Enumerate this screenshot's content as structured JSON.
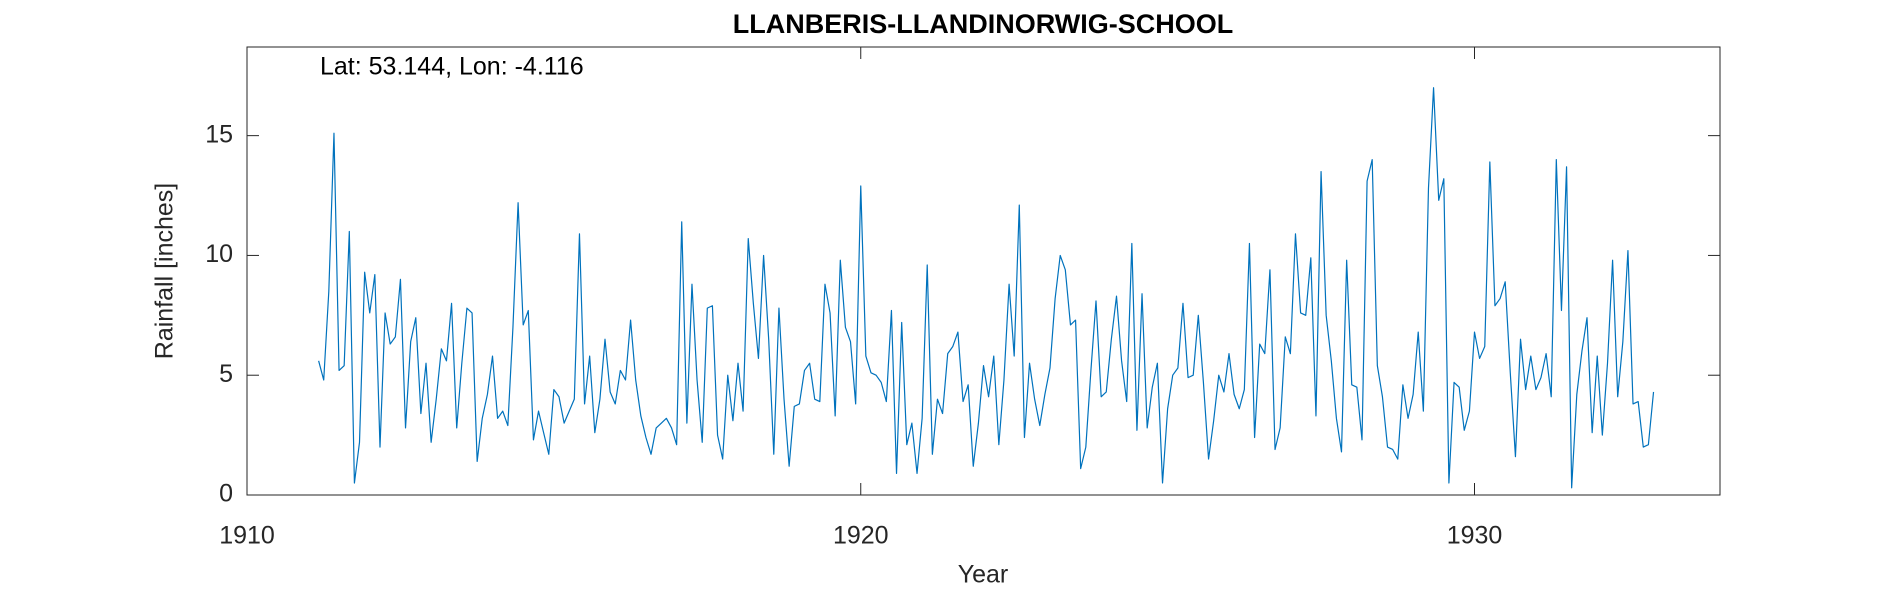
{
  "chart_data": {
    "type": "line",
    "title": "LLANBERIS-LLANDINORWIG-SCHOOL",
    "annotation": "Lat: 53.144, Lon: -4.116",
    "xlabel": "Year",
    "ylabel": "Rainfall [inches]",
    "color": "#0072bd",
    "xlim": [
      1910,
      1934
    ],
    "xticks": [
      1910,
      1920,
      1930
    ],
    "ylim": [
      0,
      18.7
    ],
    "yticks": [
      0,
      5,
      10,
      15
    ],
    "x": [
      1911.167,
      1911.25,
      1911.333,
      1911.417,
      1911.5,
      1911.583,
      1911.667,
      1911.75,
      1911.833,
      1911.917,
      1912,
      1912.083,
      1912.167,
      1912.25,
      1912.333,
      1912.417,
      1912.5,
      1912.583,
      1912.667,
      1912.75,
      1912.833,
      1912.917,
      1913,
      1913.083,
      1913.167,
      1913.25,
      1913.333,
      1913.417,
      1913.5,
      1913.583,
      1913.667,
      1913.75,
      1913.833,
      1913.917,
      1914,
      1914.083,
      1914.167,
      1914.25,
      1914.333,
      1914.417,
      1914.5,
      1914.583,
      1914.667,
      1914.75,
      1914.833,
      1914.917,
      1915,
      1915.083,
      1915.167,
      1915.25,
      1915.333,
      1915.417,
      1915.5,
      1915.583,
      1915.667,
      1915.75,
      1915.833,
      1915.917,
      1916,
      1916.083,
      1916.167,
      1916.25,
      1916.333,
      1916.417,
      1916.5,
      1916.583,
      1916.667,
      1916.75,
      1916.833,
      1916.917,
      1917,
      1917.083,
      1917.167,
      1917.25,
      1917.333,
      1917.417,
      1917.5,
      1917.583,
      1917.667,
      1917.75,
      1917.833,
      1917.917,
      1918,
      1918.083,
      1918.167,
      1918.25,
      1918.333,
      1918.417,
      1918.5,
      1918.583,
      1918.667,
      1918.75,
      1918.833,
      1918.917,
      1919,
      1919.083,
      1919.167,
      1919.25,
      1919.333,
      1919.417,
      1919.5,
      1919.583,
      1919.667,
      1919.75,
      1919.833,
      1919.917,
      1920,
      1920.083,
      1920.167,
      1920.25,
      1920.333,
      1920.417,
      1920.5,
      1920.583,
      1920.667,
      1920.75,
      1920.833,
      1920.917,
      1921,
      1921.083,
      1921.167,
      1921.25,
      1921.333,
      1921.417,
      1921.5,
      1921.583,
      1921.667,
      1921.75,
      1921.833,
      1921.917,
      1922,
      1922.083,
      1922.167,
      1922.25,
      1922.333,
      1922.417,
      1922.5,
      1922.583,
      1922.667,
      1922.75,
      1922.833,
      1922.917,
      1923,
      1923.083,
      1923.167,
      1923.25,
      1923.333,
      1923.417,
      1923.5,
      1923.583,
      1923.667,
      1923.75,
      1923.833,
      1923.917,
      1924,
      1924.083,
      1924.167,
      1924.25,
      1924.333,
      1924.417,
      1924.5,
      1924.583,
      1924.667,
      1924.75,
      1924.833,
      1924.917,
      1925,
      1925.083,
      1925.167,
      1925.25,
      1925.333,
      1925.417,
      1925.5,
      1925.583,
      1925.667,
      1925.75,
      1925.833,
      1925.917,
      1926,
      1926.083,
      1926.167,
      1926.25,
      1926.333,
      1926.417,
      1926.5,
      1926.583,
      1926.667,
      1926.75,
      1926.833,
      1926.917,
      1927,
      1927.083,
      1927.167,
      1927.25,
      1927.333,
      1927.417,
      1927.5,
      1927.583,
      1927.667,
      1927.75,
      1927.833,
      1927.917,
      1928,
      1928.083,
      1928.167,
      1928.25,
      1928.333,
      1928.417,
      1928.5,
      1928.583,
      1928.667,
      1928.75,
      1928.833,
      1928.917,
      1929,
      1929.083,
      1929.167,
      1929.25,
      1929.333,
      1929.417,
      1929.5,
      1929.583,
      1929.667,
      1929.75,
      1929.833,
      1929.917,
      1930,
      1930.083,
      1930.167,
      1930.25,
      1930.333,
      1930.417,
      1930.5,
      1930.583,
      1930.667,
      1930.75,
      1930.833,
      1930.917,
      1931,
      1931.083,
      1931.167,
      1931.25,
      1931.333,
      1931.417,
      1931.5,
      1931.583,
      1931.667,
      1931.75,
      1931.833,
      1931.917,
      1932,
      1932.083,
      1932.167,
      1932.25,
      1932.333,
      1932.417,
      1932.5,
      1932.583,
      1932.667,
      1932.75,
      1932.833,
      1932.917
    ],
    "values": [
      5.6,
      4.8,
      8.5,
      15.1,
      5.2,
      5.4,
      11.0,
      0.5,
      2.2,
      9.3,
      7.6,
      9.2,
      2.0,
      7.6,
      6.3,
      6.6,
      9.0,
      2.8,
      6.4,
      7.4,
      3.4,
      5.5,
      2.2,
      4.0,
      6.1,
      5.6,
      8.0,
      2.8,
      5.5,
      7.8,
      7.6,
      1.4,
      3.2,
      4.2,
      5.8,
      3.2,
      3.5,
      2.9,
      7.0,
      12.2,
      7.1,
      7.7,
      2.3,
      3.5,
      2.6,
      1.7,
      4.4,
      4.1,
      3.0,
      3.5,
      4.0,
      10.9,
      3.8,
      5.8,
      2.6,
      4.0,
      6.5,
      4.3,
      3.8,
      5.2,
      4.8,
      7.3,
      4.8,
      3.3,
      2.4,
      1.7,
      2.8,
      3.0,
      3.2,
      2.8,
      2.1,
      11.4,
      3.0,
      8.8,
      4.8,
      2.2,
      7.8,
      7.9,
      2.5,
      1.5,
      5.0,
      3.1,
      5.5,
      3.5,
      10.7,
      8.0,
      5.7,
      10.0,
      6.5,
      1.7,
      7.8,
      4.0,
      1.2,
      3.7,
      3.8,
      5.2,
      5.5,
      4.0,
      3.9,
      8.8,
      7.6,
      3.3,
      9.8,
      7.0,
      6.4,
      3.8,
      12.9,
      5.8,
      5.1,
      5.0,
      4.7,
      3.9,
      7.7,
      0.9,
      7.2,
      2.1,
      3.0,
      0.9,
      3.2,
      9.6,
      1.7,
      4.0,
      3.4,
      5.9,
      6.2,
      6.8,
      3.9,
      4.6,
      1.2,
      3.0,
      5.4,
      4.1,
      5.8,
      2.1,
      4.8,
      8.8,
      5.8,
      12.1,
      2.4,
      5.5,
      4.0,
      2.9,
      4.2,
      5.3,
      8.2,
      10.0,
      9.4,
      7.1,
      7.3,
      1.1,
      2.0,
      5.2,
      8.1,
      4.1,
      4.3,
      6.5,
      8.3,
      5.6,
      3.9,
      10.5,
      2.7,
      8.4,
      2.8,
      4.5,
      5.5,
      0.5,
      3.6,
      5.0,
      5.3,
      8.0,
      4.9,
      5.0,
      7.5,
      4.7,
      1.5,
      3.1,
      5.0,
      4.3,
      5.9,
      4.2,
      3.6,
      4.4,
      10.5,
      2.4,
      6.3,
      5.9,
      9.4,
      1.9,
      2.8,
      6.6,
      5.9,
      10.9,
      7.6,
      7.5,
      9.9,
      3.3,
      13.5,
      7.5,
      5.6,
      3.2,
      1.8,
      9.8,
      4.6,
      4.5,
      2.3,
      13.1,
      14.0,
      5.4,
      4.1,
      2.0,
      1.9,
      1.5,
      4.6,
      3.2,
      4.2,
      6.8,
      3.5,
      12.8,
      17.0,
      12.3,
      13.2,
      0.5,
      4.7,
      4.5,
      2.7,
      3.5,
      6.8,
      5.7,
      6.2,
      13.9,
      7.9,
      8.2,
      8.9,
      5.1,
      1.6,
      6.5,
      4.4,
      5.8,
      4.4,
      4.9,
      5.9,
      4.1,
      14.0,
      7.7,
      13.7,
      0.3,
      4.2,
      6.0,
      7.4,
      2.6,
      5.8,
      2.5,
      5.5,
      9.8,
      4.1,
      6.4,
      10.2,
      3.8,
      3.9,
      2.0,
      2.1,
      4.3
    ]
  }
}
